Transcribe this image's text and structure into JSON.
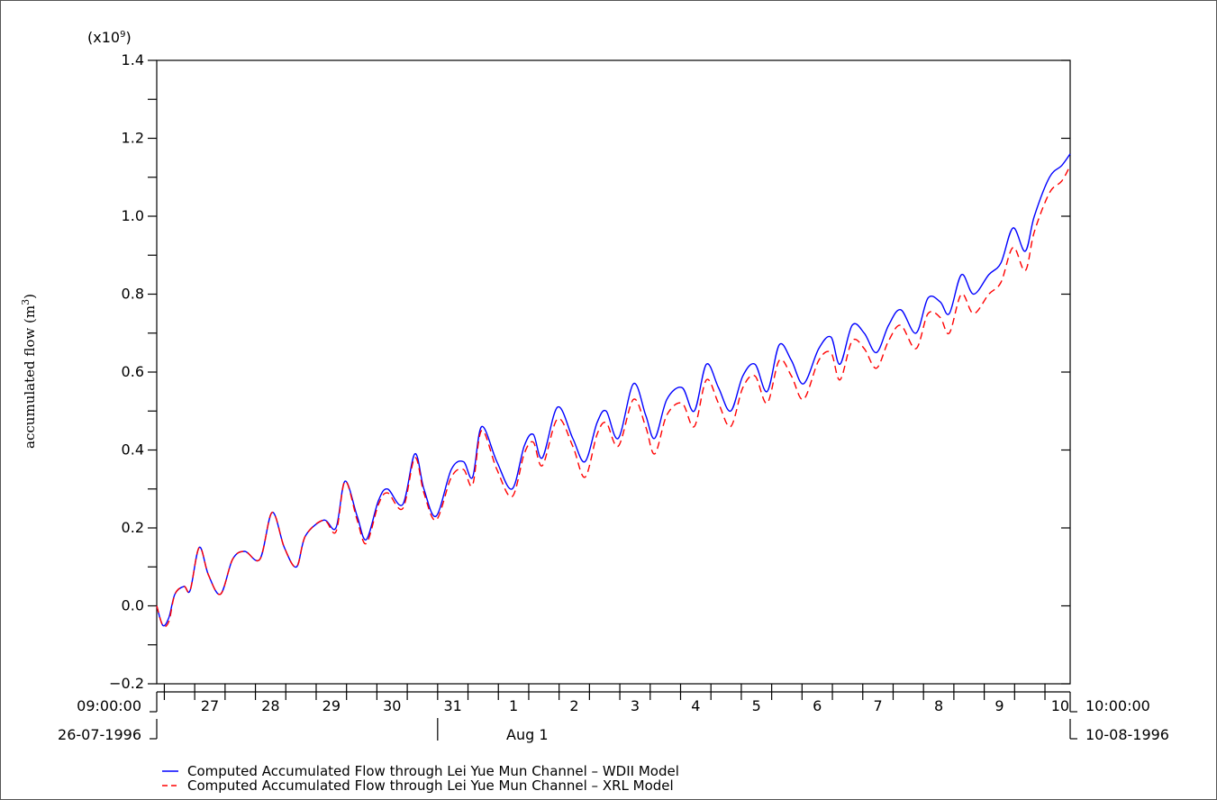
{
  "chart_data": {
    "type": "line",
    "y_multiplier_label": "(x10",
    "y_multiplier_exp": "9",
    "ylabel": "accumulated flow (m",
    "ylabel_exp": "3",
    "ylim": [
      -0.2,
      1.4
    ],
    "y_ticks": [
      "-0.2",
      "0.0",
      "0.2",
      "0.4",
      "0.6",
      "0.8",
      "1.0",
      "1.2",
      "1.4"
    ],
    "x_start_time": "09:00:00",
    "x_start_date": "26-07-1996",
    "x_end_time": "10:00:00",
    "x_end_date": "10-08-1996",
    "x_month_marker": "Aug 1",
    "x_day_labels": [
      "27",
      "28",
      "29",
      "30",
      "31",
      "1",
      "2",
      "3",
      "4",
      "5",
      "6",
      "7",
      "8",
      "9",
      "10"
    ],
    "x_range_days": [
      0,
      15.04
    ],
    "grid": false,
    "legend_position": "bottom-left",
    "series": [
      {
        "name": "Computed Accumulated Flow through Lei Yue Mun Channel – WDII Model",
        "color": "#0000ff",
        "style": "solid",
        "x": [
          0.0,
          0.1,
          0.2,
          0.3,
          0.45,
          0.55,
          0.7,
          0.85,
          1.05,
          1.25,
          1.45,
          1.7,
          1.9,
          2.1,
          2.3,
          2.45,
          2.75,
          2.95,
          3.1,
          3.3,
          3.45,
          3.65,
          3.8,
          4.05,
          4.25,
          4.4,
          4.6,
          4.85,
          5.05,
          5.2,
          5.35,
          5.6,
          5.85,
          6.05,
          6.2,
          6.35,
          6.6,
          6.85,
          7.05,
          7.25,
          7.4,
          7.6,
          7.85,
          8.05,
          8.2,
          8.4,
          8.65,
          8.85,
          9.05,
          9.25,
          9.45,
          9.65,
          9.85,
          10.05,
          10.25,
          10.45,
          10.65,
          10.9,
          11.1,
          11.25,
          11.45,
          11.65,
          11.85,
          12.05,
          12.25,
          12.5,
          12.7,
          12.9,
          13.05,
          13.25,
          13.45,
          13.7,
          13.9,
          14.1,
          14.3,
          14.45,
          14.7,
          14.9,
          15.04
        ],
        "values": [
          0.0,
          -0.05,
          -0.03,
          0.03,
          0.05,
          0.04,
          0.15,
          0.08,
          0.03,
          0.12,
          0.14,
          0.12,
          0.24,
          0.15,
          0.1,
          0.18,
          0.22,
          0.2,
          0.32,
          0.23,
          0.17,
          0.27,
          0.3,
          0.26,
          0.39,
          0.3,
          0.23,
          0.35,
          0.37,
          0.33,
          0.46,
          0.37,
          0.3,
          0.41,
          0.44,
          0.38,
          0.51,
          0.43,
          0.37,
          0.47,
          0.5,
          0.43,
          0.57,
          0.49,
          0.43,
          0.53,
          0.56,
          0.5,
          0.62,
          0.56,
          0.5,
          0.59,
          0.62,
          0.55,
          0.67,
          0.63,
          0.57,
          0.66,
          0.69,
          0.62,
          0.72,
          0.7,
          0.65,
          0.72,
          0.76,
          0.7,
          0.79,
          0.78,
          0.75,
          0.85,
          0.8,
          0.85,
          0.88,
          0.97,
          0.91,
          1.0,
          1.1,
          1.13,
          1.16
        ]
      },
      {
        "name": "Computed Accumulated Flow through Lei Yue Mun Channel – XRL Model",
        "color": "#ff0000",
        "style": "dashed",
        "x": [
          0.0,
          0.1,
          0.2,
          0.3,
          0.45,
          0.55,
          0.7,
          0.85,
          1.05,
          1.25,
          1.45,
          1.7,
          1.9,
          2.1,
          2.3,
          2.45,
          2.75,
          2.95,
          3.1,
          3.3,
          3.45,
          3.65,
          3.8,
          4.05,
          4.25,
          4.4,
          4.6,
          4.85,
          5.05,
          5.2,
          5.35,
          5.6,
          5.85,
          6.05,
          6.2,
          6.35,
          6.6,
          6.85,
          7.05,
          7.25,
          7.4,
          7.6,
          7.85,
          8.05,
          8.2,
          8.4,
          8.65,
          8.85,
          9.05,
          9.25,
          9.45,
          9.65,
          9.85,
          10.05,
          10.25,
          10.45,
          10.65,
          10.9,
          11.1,
          11.25,
          11.45,
          11.65,
          11.85,
          12.05,
          12.25,
          12.5,
          12.7,
          12.9,
          13.05,
          13.25,
          13.45,
          13.7,
          13.9,
          14.1,
          14.3,
          14.45,
          14.7,
          14.9,
          15.04
        ],
        "values": [
          0.0,
          -0.05,
          -0.04,
          0.03,
          0.05,
          0.04,
          0.15,
          0.08,
          0.03,
          0.12,
          0.14,
          0.12,
          0.24,
          0.15,
          0.1,
          0.18,
          0.22,
          0.19,
          0.32,
          0.22,
          0.16,
          0.26,
          0.29,
          0.25,
          0.38,
          0.29,
          0.22,
          0.33,
          0.35,
          0.31,
          0.45,
          0.35,
          0.28,
          0.39,
          0.42,
          0.36,
          0.48,
          0.41,
          0.33,
          0.44,
          0.47,
          0.41,
          0.53,
          0.46,
          0.39,
          0.49,
          0.52,
          0.46,
          0.58,
          0.52,
          0.46,
          0.56,
          0.59,
          0.52,
          0.63,
          0.59,
          0.53,
          0.63,
          0.65,
          0.58,
          0.68,
          0.66,
          0.61,
          0.68,
          0.72,
          0.66,
          0.75,
          0.74,
          0.7,
          0.8,
          0.75,
          0.8,
          0.83,
          0.92,
          0.86,
          0.96,
          1.06,
          1.09,
          1.13
        ]
      }
    ]
  }
}
